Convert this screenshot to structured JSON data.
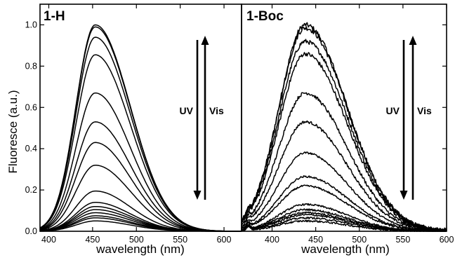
{
  "figure": {
    "ylabel": "Fluoresce (a.u.)",
    "xlabel_left": "wavelength (nm)",
    "xlabel_right": "wavelength (nm)"
  },
  "chart_data": [
    {
      "type": "line",
      "panel_label": "1-H",
      "xlabel": "wavelength (nm)",
      "ylabel": "Fluoresce (a.u.)",
      "xlim": [
        390,
        620
      ],
      "ylim": [
        0,
        1.1
      ],
      "x_ticks": [
        400,
        450,
        500,
        550,
        600
      ],
      "y_ticks": [
        0.0,
        0.2,
        0.4,
        0.6,
        0.8,
        1.0
      ],
      "x_tick_labels": [
        "400",
        "450",
        "500",
        "550",
        "600"
      ],
      "y_tick_labels": [
        "0.0",
        "0.2",
        "0.4",
        "0.6",
        "0.8",
        "1.0"
      ],
      "grid": false,
      "noise": 0,
      "curve_shape": {
        "peak": 453,
        "sigma_left": 22,
        "sigma_right": 40
      },
      "series_peaks": [
        1.0,
        0.99,
        0.94,
        0.855,
        0.67,
        0.53,
        0.43,
        0.32,
        0.195,
        0.14,
        0.12,
        0.105,
        0.09,
        0.075,
        0.065,
        0.05
      ],
      "annotations": {
        "down_label": "UV",
        "up_label": "Vis"
      }
    },
    {
      "type": "line",
      "panel_label": "1-Boc",
      "xlabel": "wavelength (nm)",
      "xlim": [
        365,
        600
      ],
      "ylim": [
        0,
        1.1
      ],
      "x_ticks": [
        400,
        450,
        500,
        550,
        600
      ],
      "x_tick_labels": [
        "400",
        "450",
        "500",
        "550",
        "600"
      ],
      "grid": false,
      "noise": 0.012,
      "curve_shape": {
        "peak": 438,
        "sigma_left": 30,
        "sigma_right": 48
      },
      "series_peaks": [
        1.0,
        0.985,
        0.92,
        0.86,
        0.67,
        0.53,
        0.38,
        0.265,
        0.22,
        0.13,
        0.105,
        0.09,
        0.08,
        0.065,
        0.05
      ],
      "annotations": {
        "down_label": "UV",
        "up_label": "Vis"
      }
    }
  ]
}
